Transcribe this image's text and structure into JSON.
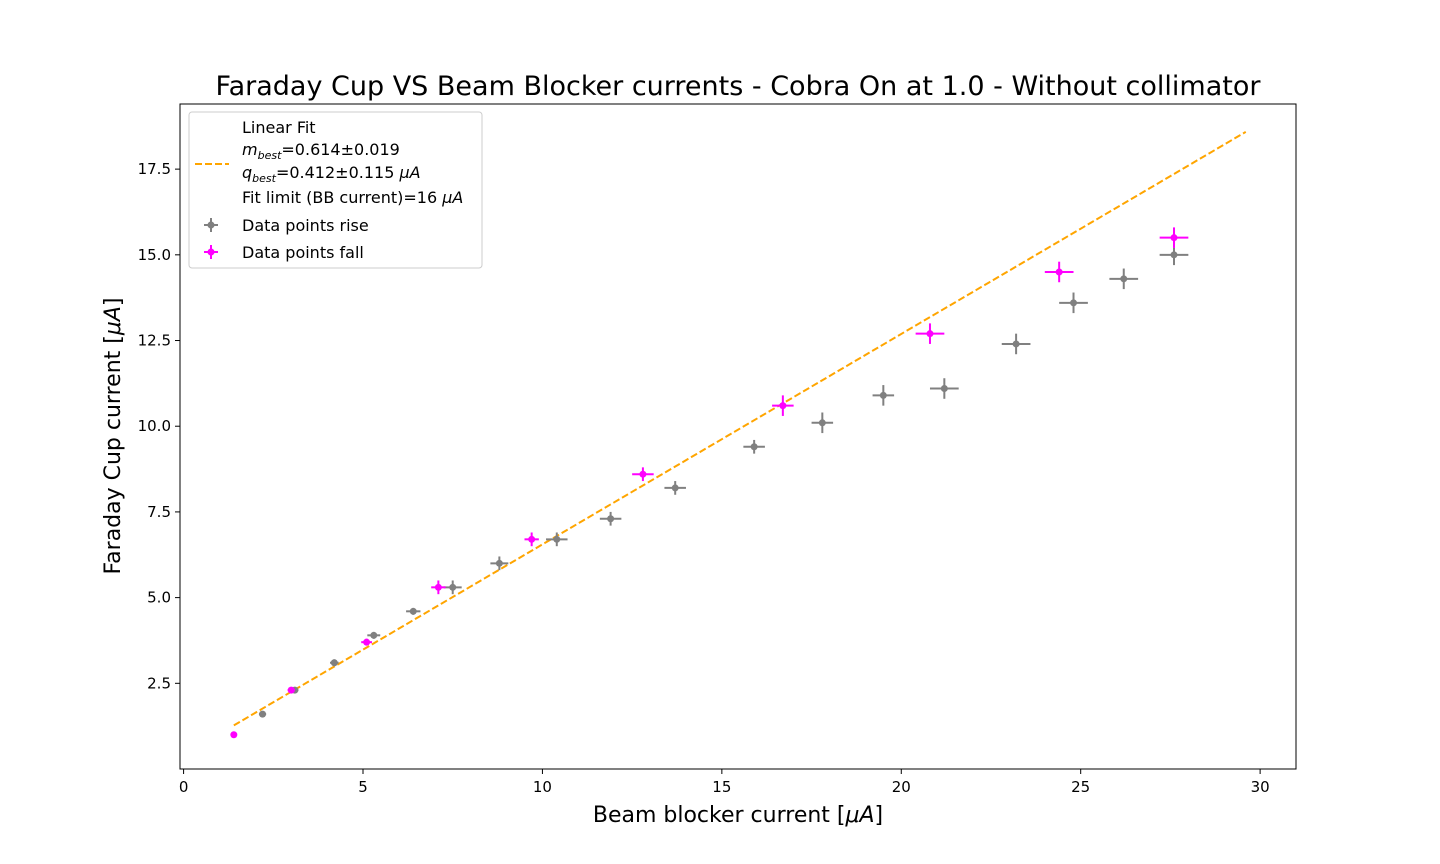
{
  "chart_data": {
    "type": "scatter",
    "title": "Faraday Cup VS Beam Blocker currents - Cobra On at 1.0 - Without collimator",
    "xlabel_text": "Beam blocker current [",
    "xlabel_unit": "μA",
    "xlabel_close": "]",
    "ylabel_text": "Faraday Cup current [",
    "ylabel_unit": "μA",
    "ylabel_close": "]",
    "xlim": [
      -0.1,
      31.0
    ],
    "ylim": [
      0.0,
      19.4
    ],
    "grid": false,
    "legend_position": "upper-left",
    "x_ticks": [
      0,
      5,
      10,
      15,
      20,
      25,
      30
    ],
    "y_ticks": [
      2.5,
      5.0,
      7.5,
      10.0,
      12.5,
      15.0,
      17.5
    ],
    "x_tick_labels": [
      "0",
      "5",
      "10",
      "15",
      "20",
      "25",
      "30"
    ],
    "y_tick_labels": [
      "2.5",
      "5.0",
      "7.5",
      "10.0",
      "12.5",
      "15.0",
      "17.5"
    ],
    "fit": {
      "label": "Linear Fit",
      "m_label": "m",
      "m_sub": "best",
      "m_value": "=0.614±0.019",
      "q_label": "q",
      "q_sub": "best",
      "q_value": "=0.412±0.115 ",
      "q_unit": "μA",
      "limit_text": "Fit limit (BB current)=16 ",
      "limit_unit": "μA",
      "m": 0.614,
      "q": 0.412,
      "x_range": [
        1.4,
        29.6
      ],
      "color": "#ffa500"
    },
    "series": [
      {
        "name": "Data points rise",
        "color": "#808080",
        "points": [
          {
            "x": 2.2,
            "y": 1.6,
            "xerr": 0.1,
            "yerr": 0.08
          },
          {
            "x": 3.1,
            "y": 2.3,
            "xerr": 0.1,
            "yerr": 0.08
          },
          {
            "x": 4.2,
            "y": 3.1,
            "xerr": 0.12,
            "yerr": 0.1
          },
          {
            "x": 5.3,
            "y": 3.9,
            "xerr": 0.18,
            "yerr": 0.1
          },
          {
            "x": 6.4,
            "y": 4.6,
            "xerr": 0.2,
            "yerr": 0.1
          },
          {
            "x": 7.5,
            "y": 5.3,
            "xerr": 0.25,
            "yerr": 0.2
          },
          {
            "x": 8.8,
            "y": 6.0,
            "xerr": 0.25,
            "yerr": 0.2
          },
          {
            "x": 10.4,
            "y": 6.7,
            "xerr": 0.3,
            "yerr": 0.2
          },
          {
            "x": 11.9,
            "y": 7.3,
            "xerr": 0.3,
            "yerr": 0.2
          },
          {
            "x": 13.7,
            "y": 8.2,
            "xerr": 0.3,
            "yerr": 0.2
          },
          {
            "x": 15.9,
            "y": 9.4,
            "xerr": 0.3,
            "yerr": 0.2
          },
          {
            "x": 17.8,
            "y": 10.1,
            "xerr": 0.3,
            "yerr": 0.3
          },
          {
            "x": 19.5,
            "y": 10.9,
            "xerr": 0.3,
            "yerr": 0.3
          },
          {
            "x": 21.2,
            "y": 11.1,
            "xerr": 0.4,
            "yerr": 0.3
          },
          {
            "x": 23.2,
            "y": 12.4,
            "xerr": 0.4,
            "yerr": 0.3
          },
          {
            "x": 24.8,
            "y": 13.6,
            "xerr": 0.4,
            "yerr": 0.3
          },
          {
            "x": 26.2,
            "y": 14.3,
            "xerr": 0.4,
            "yerr": 0.3
          },
          {
            "x": 27.6,
            "y": 15.0,
            "xerr": 0.4,
            "yerr": 0.3
          }
        ]
      },
      {
        "name": "Data points fall",
        "color": "#ff00ff",
        "points": [
          {
            "x": 1.4,
            "y": 1.0,
            "xerr": 0.05,
            "yerr": 0.05
          },
          {
            "x": 3.0,
            "y": 2.3,
            "xerr": 0.1,
            "yerr": 0.08
          },
          {
            "x": 5.1,
            "y": 3.7,
            "xerr": 0.15,
            "yerr": 0.1
          },
          {
            "x": 7.1,
            "y": 5.3,
            "xerr": 0.2,
            "yerr": 0.2
          },
          {
            "x": 9.7,
            "y": 6.7,
            "xerr": 0.2,
            "yerr": 0.2
          },
          {
            "x": 12.8,
            "y": 8.6,
            "xerr": 0.3,
            "yerr": 0.2
          },
          {
            "x": 16.7,
            "y": 10.6,
            "xerr": 0.3,
            "yerr": 0.3
          },
          {
            "x": 20.8,
            "y": 12.7,
            "xerr": 0.4,
            "yerr": 0.3
          },
          {
            "x": 24.4,
            "y": 14.5,
            "xerr": 0.4,
            "yerr": 0.3
          },
          {
            "x": 27.6,
            "y": 15.5,
            "xerr": 0.4,
            "yerr": 0.3
          }
        ]
      }
    ]
  }
}
